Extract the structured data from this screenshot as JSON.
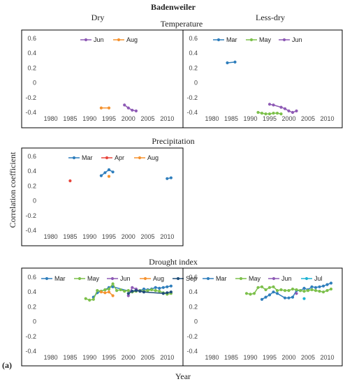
{
  "figure": {
    "title": "Badenweiler",
    "col_left": "Dry",
    "col_right": "Less-dry",
    "row_titles": [
      "Temperature",
      "Precipitation",
      "Drought index"
    ],
    "ylabel": "Correlation coefficient",
    "xlabel": "Year",
    "panel_label": "(a)"
  },
  "colors": {
    "Mar": "#2f7ebc",
    "Apr": "#e8453c",
    "May": "#7cc04b",
    "Jun": "#8e5ab5",
    "Jul": "#1fb3d3",
    "Aug": "#f5922f",
    "Sep": "#1f4e79"
  },
  "chart_data": [
    {
      "id": "temp-dry",
      "type": "line",
      "xlim": [
        1977,
        2013
      ],
      "ylim": [
        -0.4,
        0.6
      ],
      "xticks": [
        1980,
        1985,
        1990,
        1995,
        2000,
        2005,
        2010
      ],
      "yticks": [
        -0.4,
        -0.2,
        0,
        0.2,
        0.4,
        0.6
      ],
      "series": [
        {
          "name": "Jun",
          "x": [
            1999,
            2000,
            2001,
            2002
          ],
          "y": [
            -0.3,
            -0.34,
            -0.37,
            -0.38
          ]
        },
        {
          "name": "Aug",
          "x": [
            1993,
            1995
          ],
          "y": [
            -0.34,
            -0.34
          ]
        }
      ]
    },
    {
      "id": "temp-lessdry",
      "type": "line",
      "xlim": [
        1977,
        2013
      ],
      "ylim": [
        -0.4,
        0.6
      ],
      "xticks": [
        1980,
        1985,
        1990,
        1995,
        2000,
        2005,
        2010
      ],
      "yticks": [
        -0.4,
        -0.2,
        0,
        0.2,
        0.4,
        0.6
      ],
      "series": [
        {
          "name": "Mar",
          "x": [
            1984,
            1986
          ],
          "y": [
            0.27,
            0.28
          ]
        },
        {
          "name": "May",
          "x": [
            1992,
            1993,
            1994,
            1995,
            1996,
            1997,
            1998
          ],
          "y": [
            -0.4,
            -0.41,
            -0.42,
            -0.42,
            -0.41,
            -0.41,
            -0.42
          ]
        },
        {
          "name": "Jun",
          "x": [
            1995,
            1996,
            1998,
            1999,
            2000,
            2001,
            2002
          ],
          "y": [
            -0.29,
            -0.3,
            -0.33,
            -0.35,
            -0.38,
            -0.4,
            -0.38
          ]
        }
      ]
    },
    {
      "id": "precip-dry",
      "type": "line",
      "xlim": [
        1977,
        2013
      ],
      "ylim": [
        -0.4,
        0.6
      ],
      "xticks": [
        1980,
        1985,
        1990,
        1995,
        2000,
        2005,
        2010
      ],
      "yticks": [
        -0.4,
        -0.2,
        0,
        0.2,
        0.4,
        0.6
      ],
      "series": [
        {
          "name": "Mar",
          "x": [
            1993,
            1994,
            1995,
            1996
          ],
          "y": [
            0.34,
            0.38,
            0.42,
            0.39
          ]
        },
        {
          "name": "Mar",
          "x": [
            2010,
            2011
          ],
          "y": [
            0.3,
            0.31
          ],
          "hide_legend": true
        },
        {
          "name": "Apr",
          "x": [
            1985
          ],
          "y": [
            0.27
          ]
        },
        {
          "name": "Aug",
          "x": [
            1995
          ],
          "y": [
            0.33
          ]
        }
      ]
    },
    {
      "id": "drought-dry",
      "type": "line",
      "xlim": [
        1977,
        2013
      ],
      "ylim": [
        -0.4,
        0.6
      ],
      "xticks": [
        1980,
        1985,
        1990,
        1995,
        2000,
        2005,
        2010
      ],
      "yticks": [
        -0.4,
        -0.2,
        0,
        0.2,
        0.4,
        0.6
      ],
      "series": [
        {
          "name": "Mar",
          "x": [
            1991,
            1992,
            1993,
            1994,
            1995,
            1996,
            2001,
            2002,
            2003,
            2004,
            2005,
            2006,
            2007,
            2008,
            2009,
            2010,
            2011
          ],
          "y": [
            0.33,
            0.39,
            0.41,
            0.43,
            0.46,
            0.47,
            0.4,
            0.43,
            0.42,
            0.44,
            0.43,
            0.44,
            0.46,
            0.45,
            0.46,
            0.47,
            0.48
          ]
        },
        {
          "name": "May",
          "x": [
            1989,
            1990,
            1991,
            1992,
            1993,
            1994,
            1995,
            1996,
            1997,
            1998,
            1999,
            2000,
            2001,
            2002,
            2003,
            2004,
            2005,
            2006,
            2007,
            2008,
            2009,
            2010,
            2011
          ],
          "y": [
            0.31,
            0.29,
            0.3,
            0.42,
            0.41,
            0.43,
            0.44,
            0.51,
            0.42,
            0.43,
            0.41,
            0.42,
            0.4,
            0.41,
            0.42,
            0.41,
            0.42,
            0.43,
            0.42,
            0.41,
            0.39,
            0.37,
            0.38
          ]
        },
        {
          "name": "Jun",
          "x": [
            2000,
            2001,
            2002,
            2003,
            2004
          ],
          "y": [
            0.35,
            0.46,
            0.44,
            0.41,
            0.4
          ]
        },
        {
          "name": "Aug",
          "x": [
            1993,
            1994,
            1995,
            1996
          ],
          "y": [
            0.4,
            0.39,
            0.4,
            0.35
          ]
        },
        {
          "name": "Sep",
          "x": [
            2000,
            2001,
            2002,
            2003,
            2004,
            2009,
            2010,
            2011
          ],
          "y": [
            0.38,
            0.41,
            0.42,
            0.41,
            0.4,
            0.38,
            0.39,
            0.4
          ]
        }
      ]
    },
    {
      "id": "drought-lessdry",
      "type": "line",
      "xlim": [
        1977,
        2013
      ],
      "ylim": [
        -0.4,
        0.6
      ],
      "xticks": [
        1980,
        1985,
        1990,
        1995,
        2000,
        2005,
        2010
      ],
      "yticks": [
        -0.4,
        -0.2,
        0,
        0.2,
        0.4,
        0.6
      ],
      "series": [
        {
          "name": "Mar",
          "x": [
            1993,
            1994,
            1995,
            1996,
            1997,
            1999,
            2000,
            2001,
            2002,
            2003,
            2004,
            2005,
            2006,
            2007,
            2008,
            2009,
            2010,
            2011
          ],
          "y": [
            0.3,
            0.33,
            0.36,
            0.4,
            0.38,
            0.32,
            0.32,
            0.33,
            0.42,
            0.42,
            0.45,
            0.43,
            0.47,
            0.46,
            0.47,
            0.48,
            0.5,
            0.52
          ]
        },
        {
          "name": "May",
          "x": [
            1989,
            1990,
            1991,
            1992,
            1993,
            1994,
            1995,
            1996,
            1997,
            1998,
            1999,
            2000,
            2001,
            2002,
            2003,
            2004,
            2005,
            2006,
            2007,
            2008,
            2009,
            2010,
            2011
          ],
          "y": [
            0.38,
            0.37,
            0.38,
            0.46,
            0.47,
            0.43,
            0.46,
            0.47,
            0.42,
            0.43,
            0.42,
            0.42,
            0.44,
            0.43,
            0.42,
            0.41,
            0.42,
            0.43,
            0.42,
            0.41,
            0.4,
            0.42,
            0.44
          ]
        },
        {
          "name": "Jun",
          "x": [
            2002
          ],
          "y": [
            0.38
          ]
        },
        {
          "name": "Jul",
          "x": [
            2004
          ],
          "y": [
            0.31
          ]
        }
      ]
    }
  ]
}
